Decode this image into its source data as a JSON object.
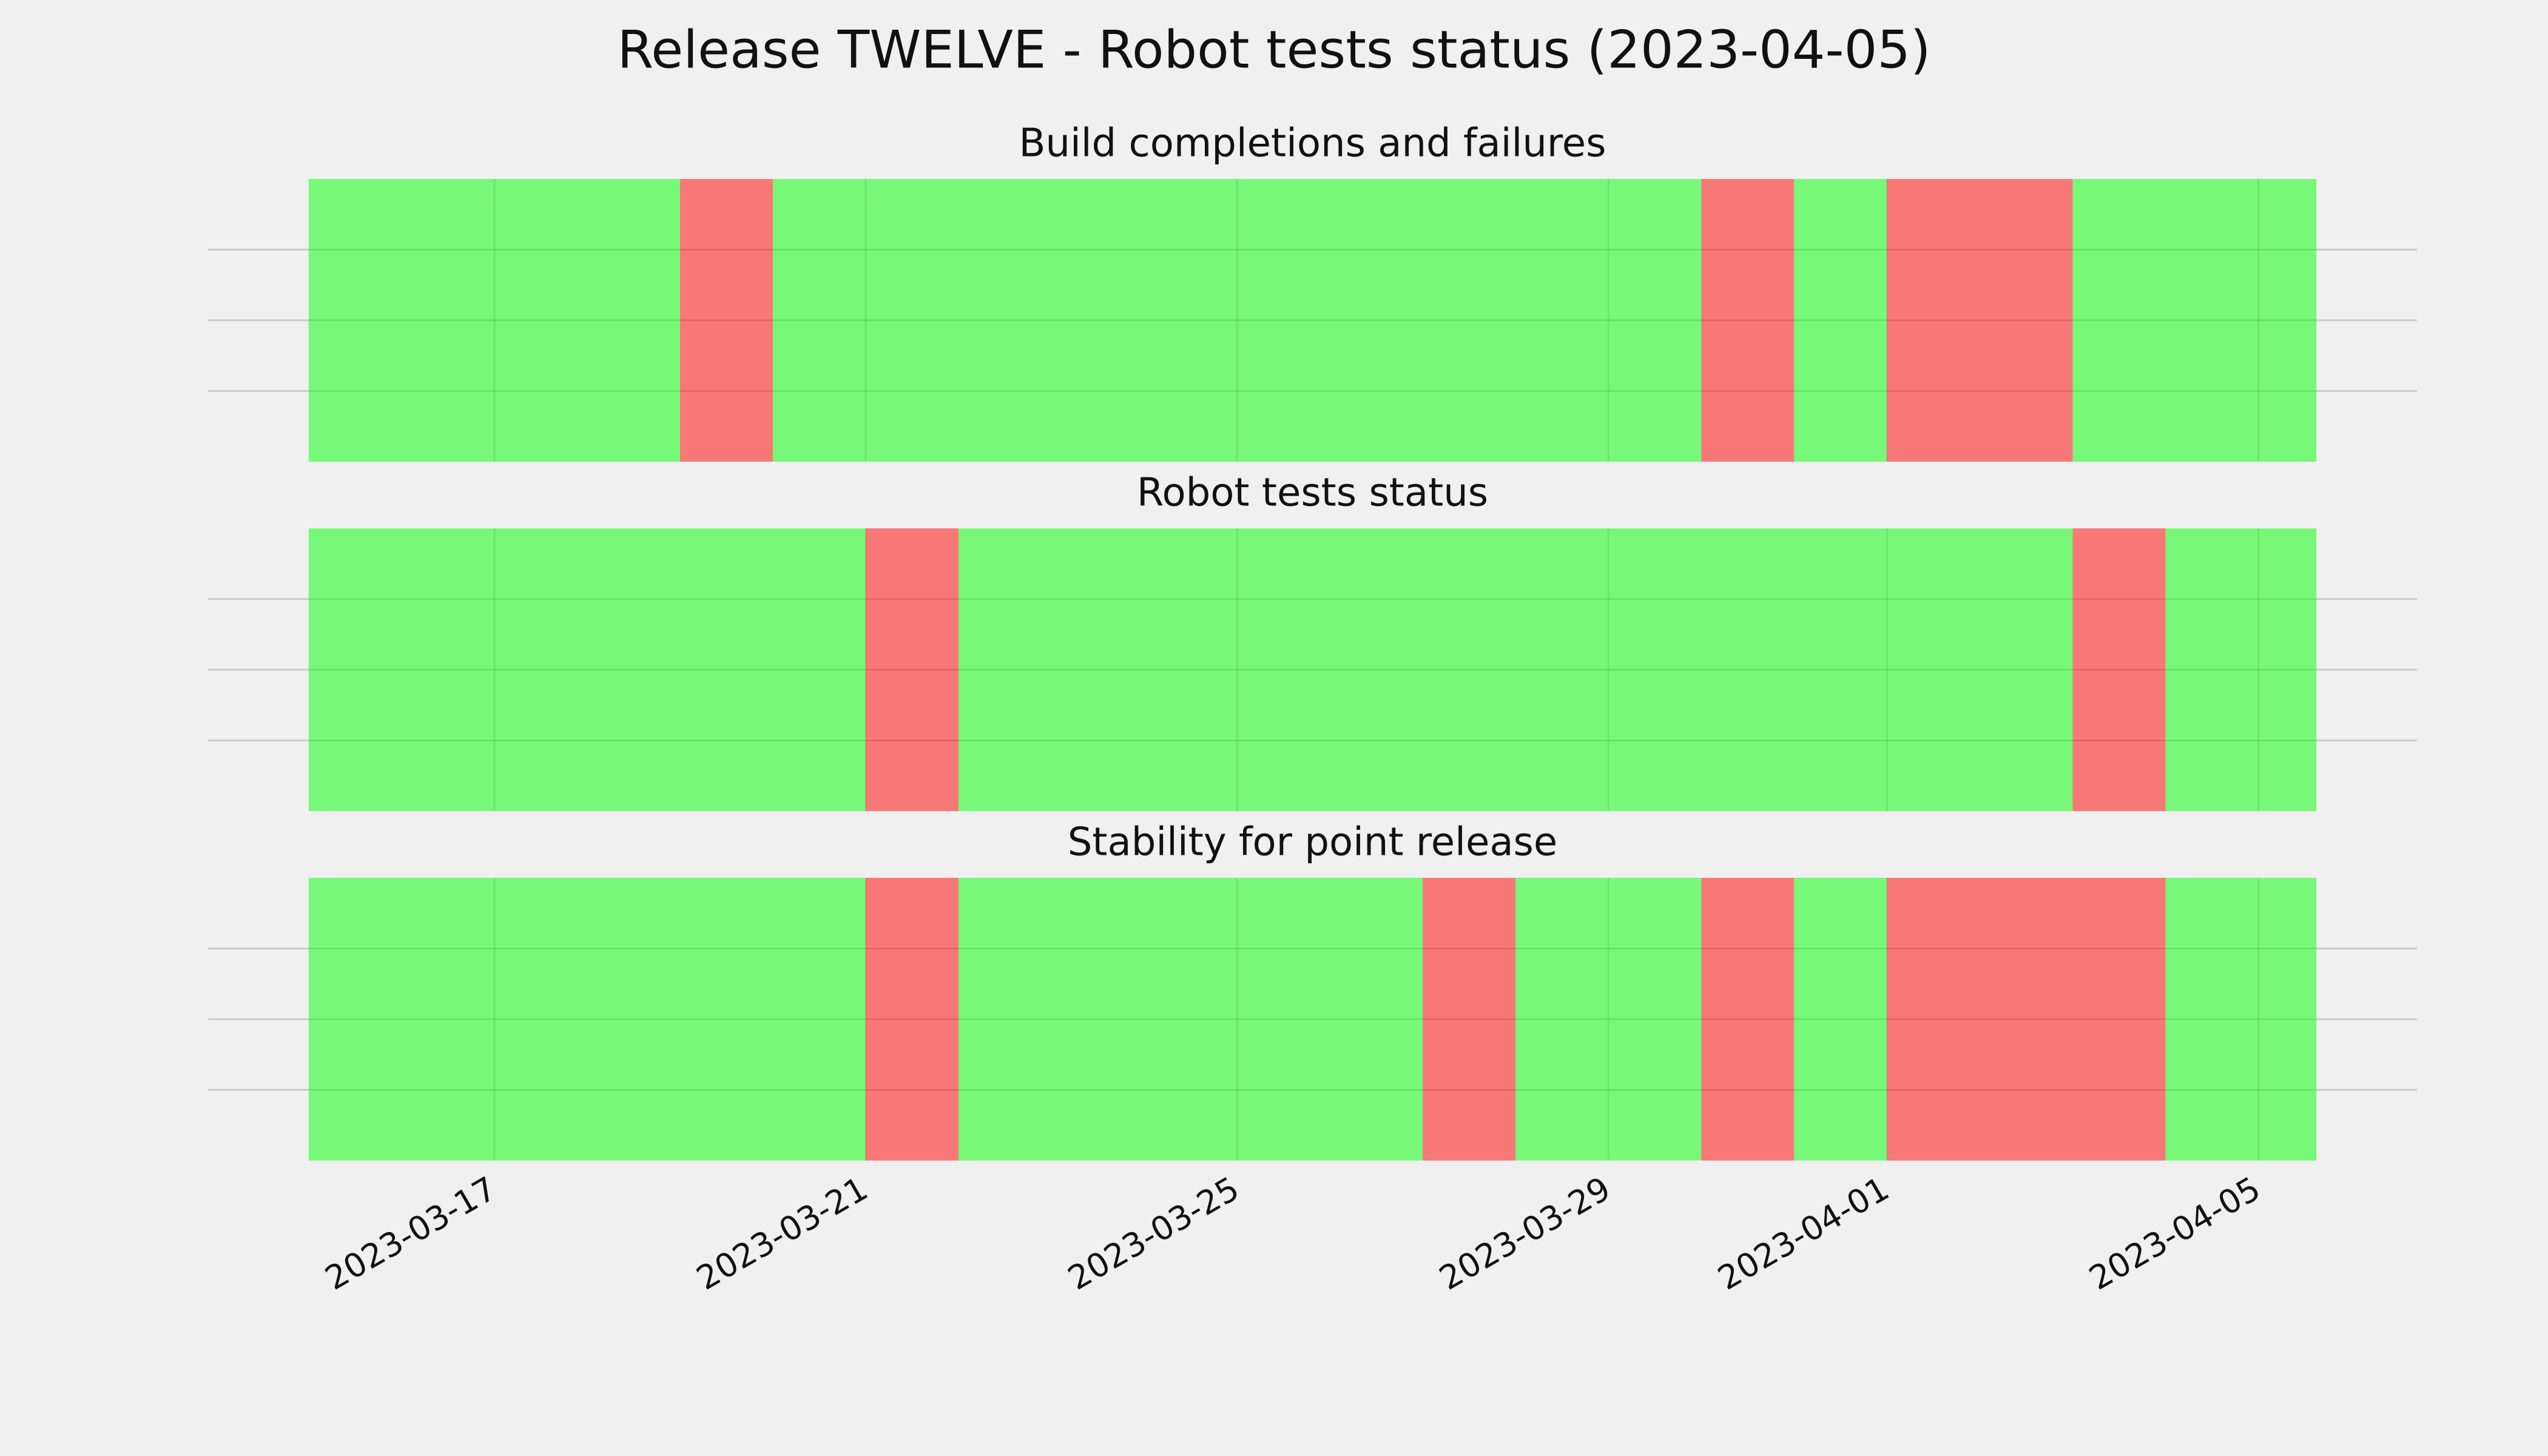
{
  "title": "Release TWELVE - Robot tests status (2023-04-05)",
  "xaxis": {
    "xlim": [
      "2023-03-13T22:00",
      "2023-04-06T17:00"
    ],
    "xticks": [
      "2023-03-17",
      "2023-03-21",
      "2023-03-25",
      "2023-03-29",
      "2023-04-01",
      "2023-04-05"
    ],
    "grid": true
  },
  "chart_data": [
    {
      "type": "span",
      "title": "Build completions and failures",
      "ylim": [
        0,
        1
      ],
      "yticks": [
        0.25,
        0.5,
        0.75
      ],
      "grid": true,
      "alpha": 0.5,
      "segments": [
        {
          "start": "2023-03-15",
          "end": "2023-03-19",
          "color": "#00ff00"
        },
        {
          "start": "2023-03-19",
          "end": "2023-03-20",
          "color": "#ff0000"
        },
        {
          "start": "2023-03-20",
          "end": "2023-03-30",
          "color": "#00ff00"
        },
        {
          "start": "2023-03-30",
          "end": "2023-03-31",
          "color": "#ff0000"
        },
        {
          "start": "2023-03-31",
          "end": "2023-04-01",
          "color": "#00ff00"
        },
        {
          "start": "2023-04-01",
          "end": "2023-04-03",
          "color": "#ff0000"
        },
        {
          "start": "2023-04-03",
          "end": "2023-04-05T15:00",
          "color": "#00ff00"
        }
      ]
    },
    {
      "type": "span",
      "title": "Robot tests status",
      "ylim": [
        0,
        1
      ],
      "yticks": [
        0.25,
        0.5,
        0.75
      ],
      "grid": true,
      "alpha": 0.5,
      "segments": [
        {
          "start": "2023-03-15",
          "end": "2023-03-21",
          "color": "#00ff00"
        },
        {
          "start": "2023-03-21",
          "end": "2023-03-22",
          "color": "#ff0000"
        },
        {
          "start": "2023-03-22",
          "end": "2023-04-03",
          "color": "#00ff00"
        },
        {
          "start": "2023-04-03",
          "end": "2023-04-04",
          "color": "#ff0000"
        },
        {
          "start": "2023-04-04",
          "end": "2023-04-05T15:00",
          "color": "#00ff00"
        }
      ]
    },
    {
      "type": "span",
      "title": "Stability for point release",
      "ylim": [
        0,
        1
      ],
      "yticks": [
        0.25,
        0.5,
        0.75
      ],
      "grid": true,
      "alpha": 0.5,
      "segments": [
        {
          "start": "2023-03-15",
          "end": "2023-03-21",
          "color": "#00ff00"
        },
        {
          "start": "2023-03-21",
          "end": "2023-03-22",
          "color": "#ff0000"
        },
        {
          "start": "2023-03-22",
          "end": "2023-03-27",
          "color": "#00ff00"
        },
        {
          "start": "2023-03-27",
          "end": "2023-03-28",
          "color": "#ff0000"
        },
        {
          "start": "2023-03-28",
          "end": "2023-03-30",
          "color": "#00ff00"
        },
        {
          "start": "2023-03-30",
          "end": "2023-03-31",
          "color": "#ff0000"
        },
        {
          "start": "2023-03-31",
          "end": "2023-04-01",
          "color": "#00ff00"
        },
        {
          "start": "2023-04-01",
          "end": "2023-04-04",
          "color": "#ff0000"
        },
        {
          "start": "2023-04-04",
          "end": "2023-04-05T15:00",
          "color": "#00ff00"
        }
      ]
    }
  ]
}
